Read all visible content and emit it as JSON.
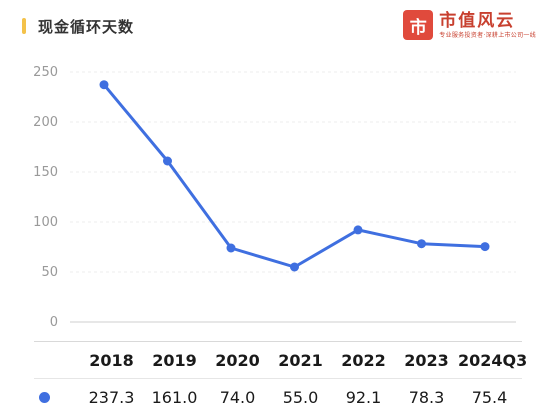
{
  "header": {
    "title": "现金循环天数",
    "brand_logo_char": "市",
    "brand_name": "市值风云",
    "brand_slogan": "专业服务投资者·深耕上市公司一线"
  },
  "colors": {
    "line": "#3f6fe0",
    "accent": "#f4c24a",
    "brand": "#c8402f"
  },
  "chart_data": {
    "type": "line",
    "title": "现金循环天数",
    "categories": [
      "2018",
      "2019",
      "2020",
      "2021",
      "2022",
      "2023",
      "2024Q3"
    ],
    "series": [
      {
        "values": [
          237.3,
          161.0,
          74.0,
          55.0,
          92.1,
          78.3,
          75.4
        ]
      }
    ],
    "yticks": [
      0,
      50,
      100,
      150,
      200,
      250
    ],
    "ylim": [
      0,
      250
    ],
    "grid": true,
    "table": {
      "years": [
        "2018",
        "2019",
        "2020",
        "2021",
        "2022",
        "2023",
        "2024Q3"
      ],
      "values": [
        "237.3",
        "161.0",
        "74.0",
        "55.0",
        "92.1",
        "78.3",
        "75.4"
      ]
    }
  }
}
